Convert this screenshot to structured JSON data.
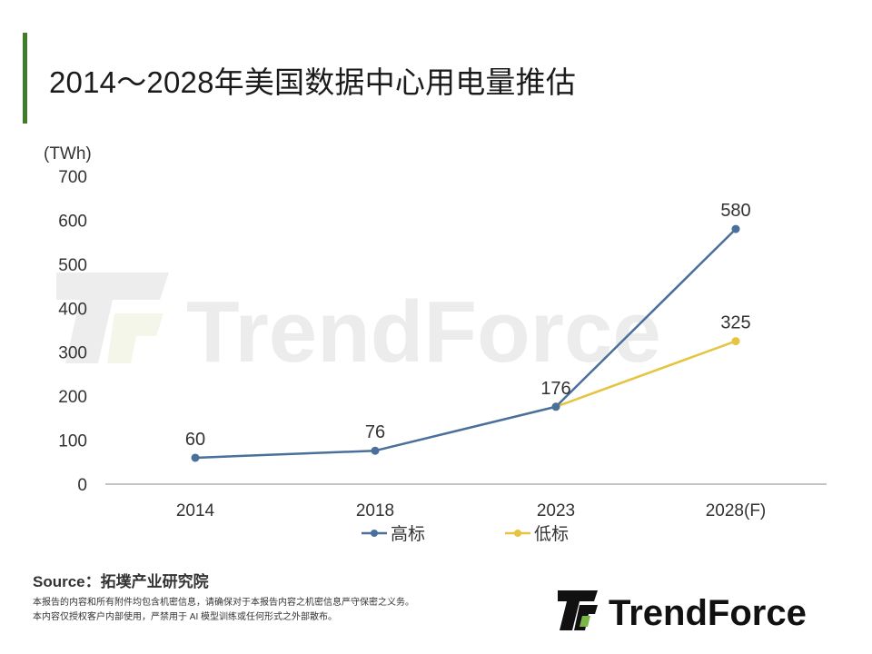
{
  "title": "2014～2028年美国数据中心用电量推估",
  "chart_data": {
    "type": "line",
    "unit_label": "(TWh)",
    "categories": [
      "2014",
      "2018",
      "2023",
      "2028(F)"
    ],
    "ylim": [
      0,
      700
    ],
    "yticks": [
      "0",
      "100",
      "200",
      "300",
      "400",
      "500",
      "600",
      "700"
    ],
    "series": [
      {
        "name": "高标",
        "color": "#4a6f9a",
        "values": [
          60,
          76,
          176,
          580
        ],
        "labels": [
          "60",
          "76",
          "176",
          "580"
        ]
      },
      {
        "name": "低标",
        "color": "#e6c440",
        "values": [
          null,
          null,
          176,
          325
        ],
        "labels": [
          "",
          "",
          "",
          "325"
        ]
      }
    ],
    "legend_position": "bottom",
    "grid": false
  },
  "watermark": "TrendForce",
  "source": "Source：拓墣产业研究院",
  "disclaimer": [
    "本报告的内容和所有附件均包含机密信息，请确保对于本报告内容之机密信息严守保密之义务。",
    "本内容仅授权客户内部使用，严禁用于 AI 模型训练或任何形式之外部散布。"
  ],
  "logo_text": "TrendForce"
}
